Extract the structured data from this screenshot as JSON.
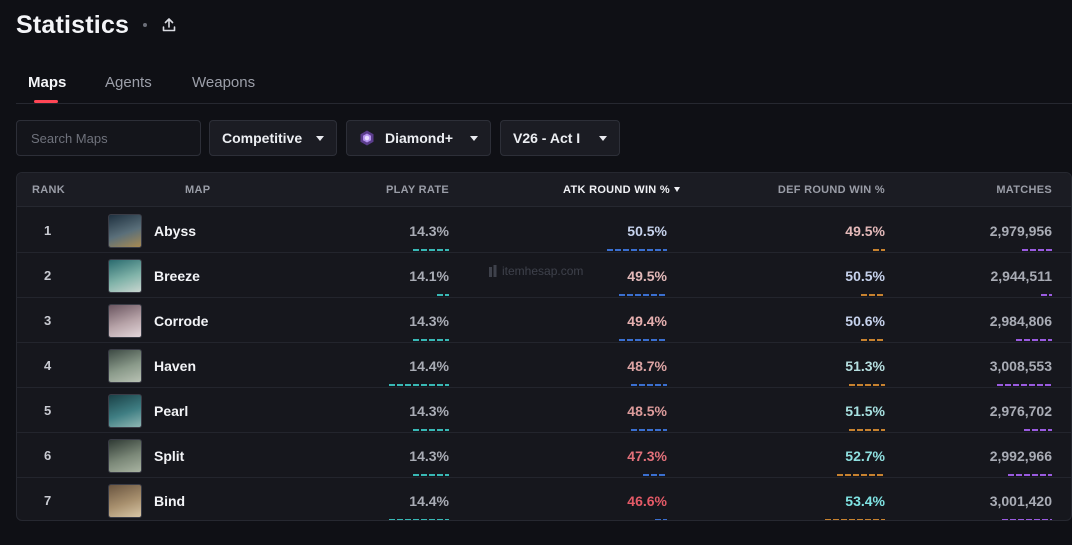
{
  "header": {
    "title": "Statistics",
    "share_icon": "upload-icon"
  },
  "tabs": [
    {
      "label": "Maps",
      "active": true
    },
    {
      "label": "Agents",
      "active": false
    },
    {
      "label": "Weapons",
      "active": false
    }
  ],
  "filters": {
    "search_placeholder": "Search Maps",
    "mode": "Competitive",
    "rank": "Diamond+",
    "act": "V26 - Act I"
  },
  "table": {
    "columns": {
      "rank": "RANK",
      "map": "MAP",
      "play_rate": "PLAY RATE",
      "atk": "ATK ROUND WIN %",
      "def": "DEF ROUND WIN %",
      "matches": "MATCHES"
    },
    "sorted_column": "atk",
    "rows": [
      {
        "rank": "1",
        "map": "Abyss",
        "play_rate": "14.3%",
        "atk": "50.5%",
        "def": "49.5%",
        "matches": "2,979,956",
        "play_level": 0.6,
        "atk_level": 1.0,
        "def_level": 0.2,
        "matches_level": 0.55,
        "atk_color": "#c6d2ec",
        "def_color": "#e3b9b9",
        "thumb_colors": [
          "#1f3140",
          "#5a6f7a",
          "#a88a52"
        ]
      },
      {
        "rank": "2",
        "map": "Breeze",
        "play_rate": "14.1%",
        "atk": "49.5%",
        "def": "50.5%",
        "matches": "2,944,511",
        "play_level": 0.2,
        "atk_level": 0.8,
        "def_level": 0.4,
        "matches_level": 0.2,
        "atk_color": "#e3b9b9",
        "def_color": "#c6d2ec",
        "thumb_colors": [
          "#2a6b6f",
          "#7fb2a8",
          "#c9d6d0"
        ]
      },
      {
        "rank": "3",
        "map": "Corrode",
        "play_rate": "14.3%",
        "atk": "49.4%",
        "def": "50.6%",
        "matches": "2,984,806",
        "play_level": 0.6,
        "atk_level": 0.8,
        "def_level": 0.4,
        "matches_level": 0.65,
        "atk_color": "#e6b0b0",
        "def_color": "#c6d2ec",
        "thumb_colors": [
          "#6a5560",
          "#b7a3a8",
          "#e3d6da"
        ]
      },
      {
        "rank": "4",
        "map": "Haven",
        "play_rate": "14.4%",
        "atk": "48.7%",
        "def": "51.3%",
        "matches": "3,008,553",
        "play_level": 1.0,
        "atk_level": 0.6,
        "def_level": 0.6,
        "matches_level": 1.0,
        "atk_color": "#dda4a4",
        "def_color": "#b6dfe0",
        "thumb_colors": [
          "#3d4a44",
          "#8a9a8a",
          "#b9c2b4"
        ]
      },
      {
        "rank": "5",
        "map": "Pearl",
        "play_rate": "14.3%",
        "atk": "48.5%",
        "def": "51.5%",
        "matches": "2,976,702",
        "play_level": 0.6,
        "atk_level": 0.6,
        "def_level": 0.6,
        "matches_level": 0.5,
        "atk_color": "#dc9b9b",
        "def_color": "#a7e0e0",
        "thumb_colors": [
          "#1a4147",
          "#3f7e83",
          "#8fb7b4"
        ]
      },
      {
        "rank": "6",
        "map": "Split",
        "play_rate": "14.3%",
        "atk": "47.3%",
        "def": "52.7%",
        "matches": "2,992,966",
        "play_level": 0.6,
        "atk_level": 0.4,
        "def_level": 0.8,
        "matches_level": 0.8,
        "atk_color": "#e2707a",
        "def_color": "#8fe0e0",
        "thumb_colors": [
          "#2f3a34",
          "#7b8878",
          "#a9b4a2"
        ]
      },
      {
        "rank": "7",
        "map": "Bind",
        "play_rate": "14.4%",
        "atk": "46.6%",
        "def": "53.4%",
        "matches": "3,001,420",
        "play_level": 1.0,
        "atk_level": 0.2,
        "def_level": 1.0,
        "matches_level": 0.9,
        "atk_color": "#e45a67",
        "def_color": "#7fe3e3",
        "thumb_colors": [
          "#6a5540",
          "#a8906e",
          "#d8c6a6"
        ]
      }
    ],
    "bar_colors": {
      "play": "#38b8b5",
      "atk": "#3a6fd0",
      "def": "#c7822f",
      "matches": "#9a5be0"
    }
  },
  "watermark": "itemhesap.com"
}
